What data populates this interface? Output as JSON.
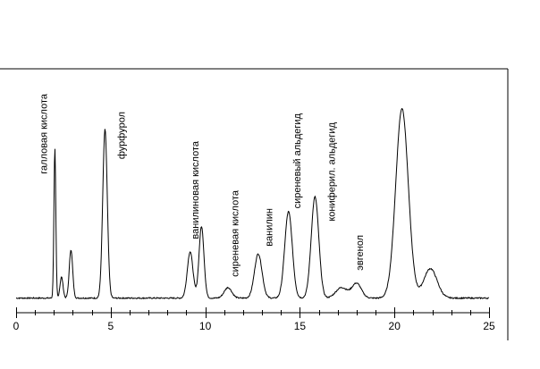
{
  "chart_data": {
    "type": "line",
    "title": "",
    "xlabel": "",
    "ylabel": "",
    "xlim": [
      0,
      25
    ],
    "ylim": [
      0,
      1
    ],
    "grid": false,
    "x_ticks": [
      0,
      5,
      10,
      15,
      20,
      25
    ],
    "x_tick_labels": [
      "0",
      "5",
      "10",
      "15",
      "20",
      "25"
    ],
    "baseline": 0.01,
    "peaks": [
      {
        "x": 2.05,
        "height": 0.71,
        "width": 0.05
      },
      {
        "x": 2.4,
        "height": 0.1,
        "width": 0.08
      },
      {
        "x": 2.9,
        "height": 0.23,
        "width": 0.09
      },
      {
        "x": 4.7,
        "height": 0.8,
        "width": 0.12
      },
      {
        "x": 9.2,
        "height": 0.22,
        "width": 0.15
      },
      {
        "x": 9.8,
        "height": 0.34,
        "width": 0.13
      },
      {
        "x": 11.2,
        "height": 0.05,
        "width": 0.2
      },
      {
        "x": 12.8,
        "height": 0.21,
        "width": 0.2
      },
      {
        "x": 14.4,
        "height": 0.41,
        "width": 0.2
      },
      {
        "x": 15.8,
        "height": 0.48,
        "width": 0.2
      },
      {
        "x": 17.2,
        "height": 0.05,
        "width": 0.3
      },
      {
        "x": 18.0,
        "height": 0.07,
        "width": 0.25
      },
      {
        "x": 20.4,
        "height": 0.9,
        "width": 0.33
      },
      {
        "x": 21.9,
        "height": 0.14,
        "width": 0.35
      }
    ],
    "annotations": [
      {
        "x": 1.4,
        "text": "галловая кислота"
      },
      {
        "x": 5.5,
        "text": "фурфурол"
      },
      {
        "x": 9.4,
        "text": "ванилиновая кислота"
      },
      {
        "x": 11.5,
        "text": "сиреневая кислота"
      },
      {
        "x": 13.3,
        "text": "ванилин"
      },
      {
        "x": 14.8,
        "text": "сиреневый альдегид"
      },
      {
        "x": 16.6,
        "text": "кониферил. альдегид"
      },
      {
        "x": 18.1,
        "text": "эвгенол"
      }
    ]
  }
}
